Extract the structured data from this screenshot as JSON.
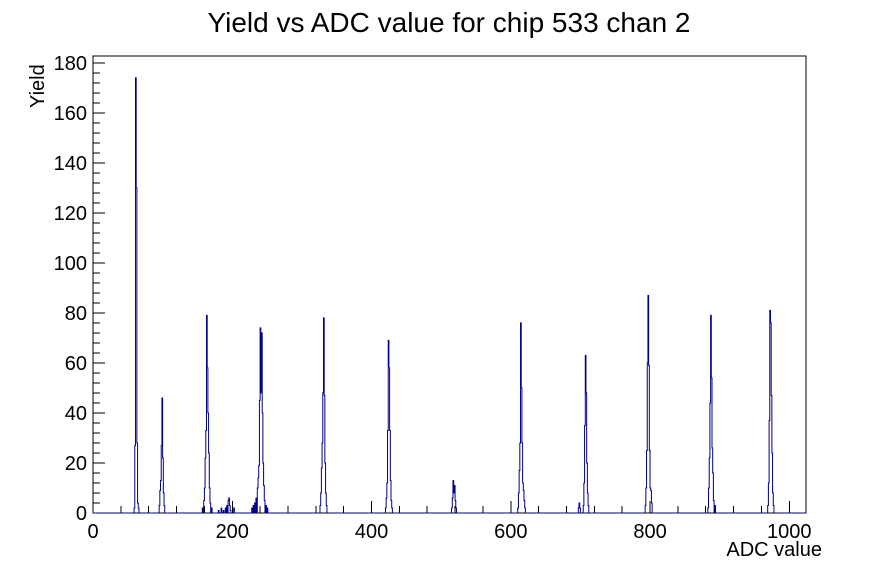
{
  "page": {
    "background": "#ffffff"
  },
  "chart_data": {
    "type": "bar",
    "subtype": "root-step-histogram",
    "title": "Yield vs ADC value for chip 533 chan 2",
    "xlabel": "ADC value",
    "ylabel": "Yield",
    "xlim": [
      0,
      1024
    ],
    "ylim": [
      0,
      182.7
    ],
    "bin_width": 1,
    "x_major_ticks": [
      0,
      200,
      400,
      600,
      800,
      1000
    ],
    "x_minor_tick_step": 40,
    "y_major_ticks": [
      0,
      20,
      40,
      60,
      80,
      100,
      120,
      140,
      160,
      180
    ],
    "y_minor_tick_step": 4,
    "grid": false,
    "legend": false,
    "line_color": "#000088",
    "axis_color": "#000000",
    "bins": [
      [
        59,
        2
      ],
      [
        60,
        27
      ],
      [
        61,
        174
      ],
      [
        62,
        130
      ],
      [
        63,
        28
      ],
      [
        64,
        4
      ],
      [
        65,
        2
      ],
      [
        95,
        3
      ],
      [
        96,
        9
      ],
      [
        97,
        13
      ],
      [
        98,
        27
      ],
      [
        99,
        46
      ],
      [
        100,
        22
      ],
      [
        101,
        8
      ],
      [
        102,
        3
      ],
      [
        157,
        2
      ],
      [
        159,
        5
      ],
      [
        160,
        10
      ],
      [
        161,
        22
      ],
      [
        162,
        33
      ],
      [
        163,
        79
      ],
      [
        164,
        58
      ],
      [
        165,
        40
      ],
      [
        166,
        24
      ],
      [
        167,
        10
      ],
      [
        168,
        4
      ],
      [
        170,
        2
      ],
      [
        180,
        1
      ],
      [
        184,
        2
      ],
      [
        187,
        1
      ],
      [
        190,
        2
      ],
      [
        192,
        3
      ],
      [
        194,
        5
      ],
      [
        195,
        6
      ],
      [
        196,
        3
      ],
      [
        197,
        1
      ],
      [
        202,
        2
      ],
      [
        228,
        2
      ],
      [
        230,
        3
      ],
      [
        232,
        4
      ],
      [
        234,
        6
      ],
      [
        236,
        10
      ],
      [
        237,
        14
      ],
      [
        238,
        19
      ],
      [
        239,
        45
      ],
      [
        240,
        74
      ],
      [
        241,
        48
      ],
      [
        242,
        72
      ],
      [
        243,
        40
      ],
      [
        244,
        20
      ],
      [
        245,
        11
      ],
      [
        246,
        5
      ],
      [
        248,
        3
      ],
      [
        250,
        2
      ],
      [
        326,
        3
      ],
      [
        327,
        8
      ],
      [
        328,
        18
      ],
      [
        329,
        28
      ],
      [
        330,
        48
      ],
      [
        331,
        78
      ],
      [
        332,
        47
      ],
      [
        333,
        20
      ],
      [
        334,
        8
      ],
      [
        335,
        3
      ],
      [
        420,
        2
      ],
      [
        421,
        6
      ],
      [
        422,
        12
      ],
      [
        423,
        33
      ],
      [
        424,
        69
      ],
      [
        425,
        58
      ],
      [
        426,
        33
      ],
      [
        427,
        13
      ],
      [
        428,
        5
      ],
      [
        429,
        2
      ],
      [
        515,
        2
      ],
      [
        516,
        6
      ],
      [
        517,
        13
      ],
      [
        518,
        8
      ],
      [
        519,
        11
      ],
      [
        520,
        5
      ],
      [
        521,
        2
      ],
      [
        610,
        2
      ],
      [
        611,
        8
      ],
      [
        612,
        17
      ],
      [
        613,
        28
      ],
      [
        614,
        76
      ],
      [
        615,
        50
      ],
      [
        616,
        28
      ],
      [
        617,
        12
      ],
      [
        618,
        9
      ],
      [
        619,
        5
      ],
      [
        620,
        2
      ],
      [
        697,
        2
      ],
      [
        698,
        4
      ],
      [
        699,
        2
      ],
      [
        704,
        3
      ],
      [
        705,
        12
      ],
      [
        706,
        35
      ],
      [
        707,
        63
      ],
      [
        708,
        48
      ],
      [
        709,
        20
      ],
      [
        710,
        8
      ],
      [
        711,
        3
      ],
      [
        793,
        3
      ],
      [
        794,
        10
      ],
      [
        795,
        25
      ],
      [
        796,
        60
      ],
      [
        797,
        87
      ],
      [
        798,
        59
      ],
      [
        799,
        25
      ],
      [
        800,
        10
      ],
      [
        801,
        9
      ],
      [
        802,
        4
      ],
      [
        883,
        2
      ],
      [
        884,
        10
      ],
      [
        885,
        22
      ],
      [
        886,
        44
      ],
      [
        887,
        79
      ],
      [
        888,
        54
      ],
      [
        889,
        26
      ],
      [
        890,
        16
      ],
      [
        891,
        5
      ],
      [
        893,
        3
      ],
      [
        969,
        3
      ],
      [
        970,
        12
      ],
      [
        971,
        37
      ],
      [
        972,
        81
      ],
      [
        973,
        76
      ],
      [
        974,
        47
      ],
      [
        975,
        24
      ],
      [
        976,
        8
      ],
      [
        977,
        3
      ]
    ]
  }
}
